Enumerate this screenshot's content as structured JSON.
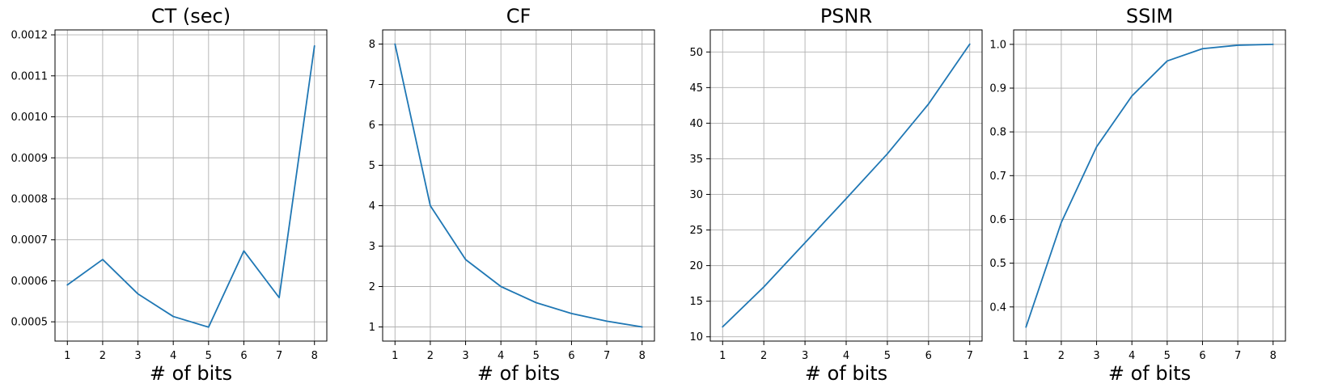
{
  "colors": {
    "series": "#1f77b4",
    "grid": "#b0b0b0"
  },
  "chart_data": [
    {
      "type": "line",
      "title": "CT (sec)",
      "xlabel": "# of bits",
      "ylabel": "",
      "grid": true,
      "x": [
        1,
        2,
        3,
        4,
        5,
        6,
        7,
        8
      ],
      "xticks": [
        "1",
        "2",
        "3",
        "4",
        "5",
        "6",
        "7",
        "8"
      ],
      "xlim": [
        0.65,
        8.35
      ],
      "ylim": [
        0.000453,
        0.001212
      ],
      "yticks": [
        "0.0005",
        "0.0006",
        "0.0007",
        "0.0008",
        "0.0009",
        "0.0010",
        "0.0011",
        "0.0012"
      ],
      "ytick_values": [
        0.0005,
        0.0006,
        0.0007,
        0.0008,
        0.0009,
        0.001,
        0.0011,
        0.0012
      ],
      "series": [
        {
          "values": [
            0.00059,
            0.000652,
            0.000568,
            0.000513,
            0.000487,
            0.000673,
            0.000559,
            0.001173
          ]
        }
      ]
    },
    {
      "type": "line",
      "title": "CF",
      "xlabel": "# of bits",
      "ylabel": "",
      "grid": true,
      "x": [
        1,
        2,
        3,
        4,
        5,
        6,
        7,
        8
      ],
      "xticks": [
        "1",
        "2",
        "3",
        "4",
        "5",
        "6",
        "7",
        "8"
      ],
      "xlim": [
        0.65,
        8.35
      ],
      "ylim": [
        0.65,
        8.35
      ],
      "yticks": [
        "1",
        "2",
        "3",
        "4",
        "5",
        "6",
        "7",
        "8"
      ],
      "ytick_values": [
        1,
        2,
        3,
        4,
        5,
        6,
        7,
        8
      ],
      "series": [
        {
          "values": [
            8,
            4,
            2.667,
            2,
            1.6,
            1.333,
            1.143,
            1
          ]
        }
      ]
    },
    {
      "type": "line",
      "title": "PSNR",
      "xlabel": "# of bits",
      "ylabel": "",
      "grid": true,
      "x": [
        1,
        2,
        3,
        4,
        5,
        6,
        7
      ],
      "xticks": [
        "1",
        "2",
        "3",
        "4",
        "5",
        "6",
        "7"
      ],
      "xlim": [
        0.7,
        7.3
      ],
      "ylim": [
        9.4,
        53.1
      ],
      "yticks": [
        "10",
        "15",
        "20",
        "25",
        "30",
        "35",
        "40",
        "45",
        "50"
      ],
      "ytick_values": [
        10,
        15,
        20,
        25,
        30,
        35,
        40,
        45,
        50
      ],
      "series": [
        {
          "values": [
            11.4,
            17.0,
            23.2,
            29.4,
            35.7,
            42.7,
            51.1
          ]
        }
      ]
    },
    {
      "type": "line",
      "title": "SSIM",
      "xlabel": "# of bits",
      "ylabel": "",
      "grid": true,
      "x": [
        1,
        2,
        3,
        4,
        5,
        6,
        7,
        8
      ],
      "xticks": [
        "1",
        "2",
        "3",
        "4",
        "5",
        "6",
        "7",
        "8"
      ],
      "xlim": [
        0.65,
        8.35
      ],
      "ylim": [
        0.322,
        1.033
      ],
      "yticks": [
        "0.4",
        "0.5",
        "0.6",
        "0.7",
        "0.8",
        "0.9",
        "1.0"
      ],
      "ytick_values": [
        0.4,
        0.5,
        0.6,
        0.7,
        0.8,
        0.9,
        1.0
      ],
      "series": [
        {
          "values": [
            0.354,
            0.593,
            0.766,
            0.882,
            0.962,
            0.99,
            0.998,
            1.0
          ]
        }
      ]
    }
  ]
}
